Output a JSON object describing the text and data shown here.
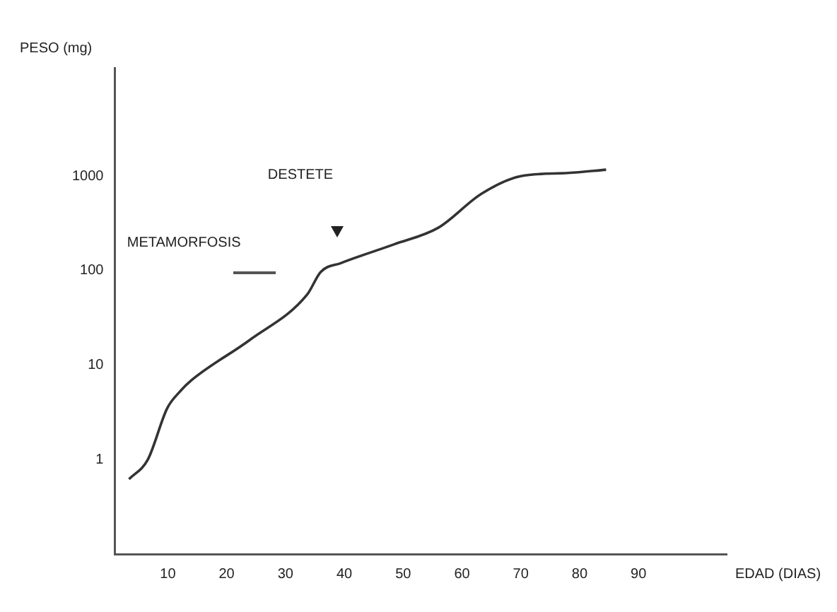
{
  "chart_data": {
    "type": "line",
    "xlabel": "EDAD (DIAS)",
    "ylabel": "PESO (mg)",
    "log": "y",
    "grid": false,
    "marker": "none",
    "line_style": "solid",
    "legend": false,
    "xlim": [
      1,
      105
    ],
    "xticks": [
      10,
      20,
      30,
      40,
      50,
      60,
      70,
      80,
      90
    ],
    "ylim": [
      0.1,
      14000
    ],
    "yticks": [
      1,
      10,
      100,
      1000
    ],
    "series": [
      {
        "color": "#333333",
        "x": [
          3.4,
          6.6,
          9.9,
          12,
          14,
          23.9,
          33.7,
          36,
          39.4,
          48.5,
          56,
          63.3,
          70,
          78,
          84.5
        ],
        "values": [
          0.62,
          1.0,
          3.5,
          5.2,
          6.9,
          18.4,
          56,
          97,
          120,
          190,
          285,
          650,
          1000,
          1080,
          1170
        ]
      }
    ],
    "annotations": [
      "METAMORFOSIS",
      "DESTETE"
    ]
  }
}
